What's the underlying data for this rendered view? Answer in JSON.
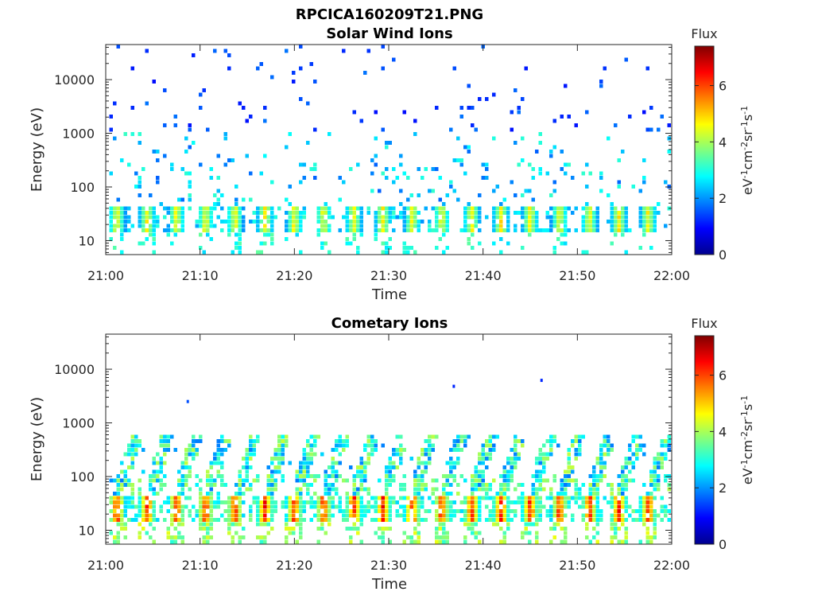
{
  "figure": {
    "title": "RPCICA160209T21.PNG"
  },
  "colorbar": {
    "label": "Flux",
    "units": {
      "a": "eV",
      "b": "-1",
      "c": "cm",
      "d": "-2",
      "e": "sr",
      "f": "-1",
      "g": "s",
      "h": "-1"
    },
    "ticks": [
      "0",
      "2",
      "4",
      "6"
    ],
    "range": [
      0,
      7.4
    ],
    "colormap": "jet"
  },
  "chart_data": [
    {
      "type": "heatmap",
      "title": "Solar Wind Ions",
      "xlabel": "Time",
      "ylabel": "Energy (eV)",
      "xlim": [
        "21:00",
        "22:00"
      ],
      "x_ticks": [
        "21:00",
        "21:10",
        "21:20",
        "21:30",
        "21:40",
        "21:50",
        "22:00"
      ],
      "y_scale": "log",
      "ylim": [
        5.5,
        45000
      ],
      "y_ticks": [
        "10",
        "100",
        "1000",
        "10000"
      ],
      "periodic_bursts_minutes": [
        1.2,
        4.4,
        7.5,
        10.6,
        13.7,
        16.9,
        20.0,
        23.1,
        26.3,
        29.4,
        32.5,
        35.6,
        38.8,
        41.9,
        45.0,
        48.1,
        51.3,
        54.4,
        57.5
      ],
      "core_band_eV": [
        15,
        45
      ],
      "core_peak_flux": 5.0,
      "background_flux": 2.0,
      "scatter_energy_range_eV": [
        40,
        30000
      ]
    },
    {
      "type": "heatmap",
      "title": "Cometary Ions",
      "xlabel": "Time",
      "ylabel": "Energy (eV)",
      "xlim": [
        "21:00",
        "22:00"
      ],
      "x_ticks": [
        "21:00",
        "21:10",
        "21:20",
        "21:30",
        "21:40",
        "21:50",
        "22:00"
      ],
      "y_scale": "log",
      "ylim": [
        5.5,
        45000
      ],
      "y_ticks": [
        "10",
        "100",
        "1000",
        "10000"
      ],
      "periodic_bursts_minutes": [
        1.2,
        4.4,
        7.5,
        10.6,
        13.7,
        16.9,
        20.0,
        23.1,
        26.3,
        29.4,
        32.5,
        35.6,
        38.8,
        41.9,
        45.0,
        48.1,
        51.3,
        54.4,
        57.5
      ],
      "core_band_eV": [
        15,
        45
      ],
      "core_peak_flux": 6.8,
      "background_flux": 2.5,
      "rising_streak_top_eV": 600,
      "isolated_points": [
        {
          "time_min": 8.7,
          "energy_eV": 2500,
          "flux": 1.5
        },
        {
          "time_min": 36.9,
          "energy_eV": 4800,
          "flux": 1.2
        },
        {
          "time_min": 46.2,
          "energy_eV": 6200,
          "flux": 1.2
        }
      ]
    }
  ]
}
